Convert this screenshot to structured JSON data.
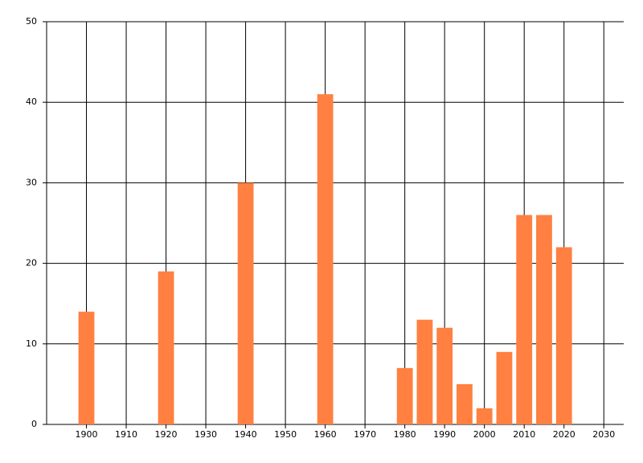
{
  "chart_data": {
    "type": "bar",
    "x": [
      1900,
      1920,
      1940,
      1960,
      1980,
      1985,
      1990,
      1995,
      2000,
      2005,
      2010,
      2015,
      2020
    ],
    "values": [
      14,
      19,
      30,
      41,
      7,
      13,
      12,
      5,
      2,
      9,
      26,
      26,
      22
    ],
    "color": "#ff8040",
    "xlim": [
      1890,
      2035
    ],
    "xticks": [
      1900,
      1910,
      1920,
      1930,
      1940,
      1950,
      1960,
      1970,
      1980,
      1990,
      2000,
      2010,
      2020,
      2030
    ],
    "ylim": [
      0,
      50
    ],
    "yticks": [
      0,
      10,
      20,
      30,
      40,
      50
    ],
    "grid": true
  }
}
